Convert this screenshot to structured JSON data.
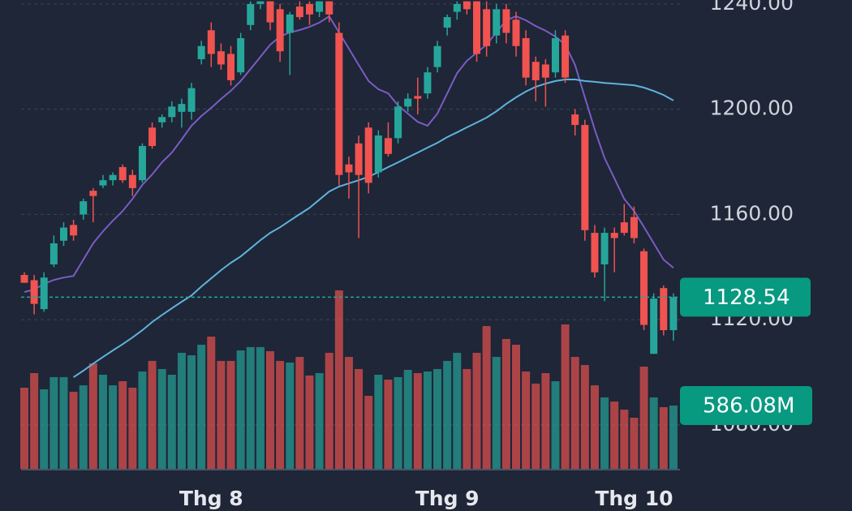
{
  "chart_data": {
    "type": "candlestick",
    "categories": [
      null,
      null,
      null,
      null,
      null,
      null,
      null,
      null,
      null,
      null,
      null,
      null,
      null,
      null,
      null,
      null,
      null,
      null,
      null,
      "Thg 8",
      null,
      null,
      null,
      null,
      null,
      null,
      null,
      null,
      null,
      null,
      null,
      null,
      null,
      null,
      null,
      null,
      null,
      null,
      null,
      null,
      null,
      null,
      null,
      "Thg 9",
      null,
      null,
      null,
      null,
      null,
      null,
      null,
      null,
      null,
      null,
      null,
      null,
      null,
      null,
      null,
      null,
      null,
      null,
      "Thg 10",
      null,
      null,
      null,
      null
    ],
    "open": [
      1137,
      1135,
      1124,
      1141,
      1150,
      1156,
      1160,
      1169,
      1171,
      1173,
      1178,
      1175,
      1173,
      1193,
      1195,
      1197,
      1199,
      1199,
      1219,
      1230,
      1222,
      1221,
      1214,
      1232,
      1240,
      1241,
      1238,
      1229,
      1239,
      1240,
      1237,
      1241,
      1229,
      1179,
      1187,
      1193,
      1176,
      1189,
      1189,
      1201,
      1205,
      1206,
      1216,
      1231,
      1237,
      1241,
      1241,
      1238,
      1228,
      1238,
      1234,
      1227,
      1218,
      1217,
      1214,
      1228,
      1198,
      1194,
      1153,
      1141,
      1153,
      1157,
      1159,
      1146,
      1107,
      1132,
      1116
    ],
    "high": [
      1138,
      1137,
      1138,
      1152,
      1157,
      1158,
      1166,
      1170,
      1175,
      1176,
      1179,
      1177,
      1187,
      1195,
      1198,
      1203,
      1204,
      1210,
      1226,
      1233,
      1225,
      1224,
      1229,
      1241,
      1241,
      1241,
      1240,
      1237,
      1241,
      1241,
      1241,
      1241,
      1233,
      1182,
      1190,
      1195,
      1192,
      1195,
      1203,
      1206,
      1212,
      1216,
      1226,
      1236,
      1241,
      1241,
      1241,
      1241,
      1240,
      1240,
      1237,
      1230,
      1220,
      1219,
      1230,
      1230,
      1200,
      1196,
      1156,
      1155,
      1155,
      1164,
      1163,
      1147,
      1130,
      1133,
      1130
    ],
    "low": [
      1134,
      1122,
      1123,
      1140,
      1148,
      1150,
      1158,
      1157,
      1170,
      1171,
      1172,
      1167,
      1172,
      1185,
      1193,
      1195,
      1193,
      1196,
      1217,
      1216,
      1215,
      1209,
      1213,
      1230,
      1238,
      1230,
      1218,
      1213,
      1234,
      1232,
      1235,
      1233,
      1171,
      1166,
      1151,
      1168,
      1174,
      1182,
      1187,
      1199,
      1198,
      1204,
      1214,
      1228,
      1234,
      1236,
      1218,
      1220,
      1225,
      1225,
      1220,
      1209,
      1203,
      1201,
      1212,
      1210,
      1190,
      1150,
      1136,
      1127,
      1138,
      1152,
      1149,
      1116,
      1107,
      1114,
      1112
    ],
    "close": [
      1134,
      1126,
      1136,
      1149,
      1155,
      1152,
      1165,
      1167,
      1173,
      1175,
      1173,
      1170,
      1186,
      1186,
      1197,
      1201,
      1202,
      1208,
      1224,
      1221,
      1217,
      1211,
      1227,
      1240,
      1241,
      1233,
      1222,
      1236,
      1235,
      1236,
      1241,
      1236,
      1175,
      1176,
      1175,
      1172,
      1190,
      1183,
      1201,
      1204,
      1204,
      1214,
      1224,
      1235,
      1240,
      1238,
      1221,
      1224,
      1238,
      1229,
      1224,
      1212,
      1211,
      1212,
      1227,
      1212,
      1194,
      1154,
      1138,
      1153,
      1151,
      1153,
      1151,
      1118,
      1128,
      1116,
      1128.54
    ],
    "volume": [
      751,
      886,
      736,
      849,
      849,
      713,
      773,
      976,
      871,
      773,
      811,
      751,
      901,
      999,
      924,
      871,
      1074,
      1051,
      1149,
      1224,
      999,
      999,
      1096,
      1127,
      1127,
      1089,
      999,
      984,
      1036,
      864,
      886,
      1074,
      1652,
      1036,
      924,
      676,
      871,
      826,
      849,
      916,
      886,
      901,
      924,
      999,
      1074,
      924,
      1074,
      1322,
      1036,
      1202,
      1149,
      901,
      789,
      886,
      811,
      1337,
      1036,
      961,
      773,
      661,
      623,
      548,
      473,
      946,
      661,
      571,
      586.08
    ],
    "last_volume_label": "586.08M",
    "up_color": "#26a69a",
    "down_color": "#f05350",
    "series": [
      {
        "color": "#7b5cc4",
        "values": [
          1130.5,
          1131.4,
          1133.6,
          1135.1,
          1136.0,
          1136.6,
          1142.8,
          1149.0,
          1153.6,
          1157.6,
          1161.3,
          1165.9,
          1171.2,
          1175.2,
          1179.8,
          1183.5,
          1188.5,
          1193.7,
          1197.4,
          1200.5,
          1203.9,
          1207.0,
          1210.7,
          1215.3,
          1219.9,
          1224.5,
          1227.6,
          1229.2,
          1230.1,
          1231.3,
          1232.9,
          1235.3,
          1229.2,
          1223.0,
          1216.8,
          1210.7,
          1207.6,
          1206.0,
          1201.4,
          1198.3,
          1195.2,
          1193.7,
          1198.3,
          1206.0,
          1213.7,
          1218.4,
          1221.5,
          1224.5,
          1229.2,
          1233.8,
          1235.3,
          1233.8,
          1231.6,
          1229.8,
          1227.6,
          1224.5,
          1216.8,
          1204.5,
          1192.2,
          1181.4,
          1173.7,
          1165.9,
          1161.3,
          1155.2,
          1149.0,
          1142.8,
          1139.7
        ]
      },
      {
        "color": "#5fb3dc",
        "values": [
          null,
          null,
          null,
          null,
          null,
          1098.1,
          1100.6,
          1103.3,
          1105.8,
          1108.3,
          1110.7,
          1113.2,
          1116.0,
          1119.1,
          1121.8,
          1124.3,
          1126.8,
          1129.2,
          1132.6,
          1135.7,
          1138.8,
          1141.6,
          1144.0,
          1147.1,
          1150.2,
          1153.0,
          1155.1,
          1157.6,
          1160.1,
          1162.5,
          1165.6,
          1168.7,
          1170.6,
          1171.8,
          1173.0,
          1174.3,
          1176.1,
          1178.0,
          1179.8,
          1181.7,
          1183.5,
          1185.4,
          1187.2,
          1189.4,
          1191.2,
          1193.1,
          1194.9,
          1196.8,
          1199.2,
          1202.0,
          1204.5,
          1206.7,
          1208.5,
          1209.7,
          1210.7,
          1211.3,
          1211.3,
          1210.7,
          1210.4,
          1210.0,
          1209.7,
          1209.4,
          1209.1,
          1208.2,
          1206.9,
          1205.4,
          1203.3
        ]
      }
    ],
    "ylim": [
      1063.3,
      1241.5
    ],
    "yticks": [
      {
        "value": 1080,
        "label": "1080.00"
      },
      {
        "value": 1120,
        "label": "1120.00"
      },
      {
        "value": 1160,
        "label": "1160.00"
      },
      {
        "value": 1200,
        "label": "1200.00"
      },
      {
        "value": 1240,
        "label": "1240.00"
      }
    ],
    "grid": true
  }
}
